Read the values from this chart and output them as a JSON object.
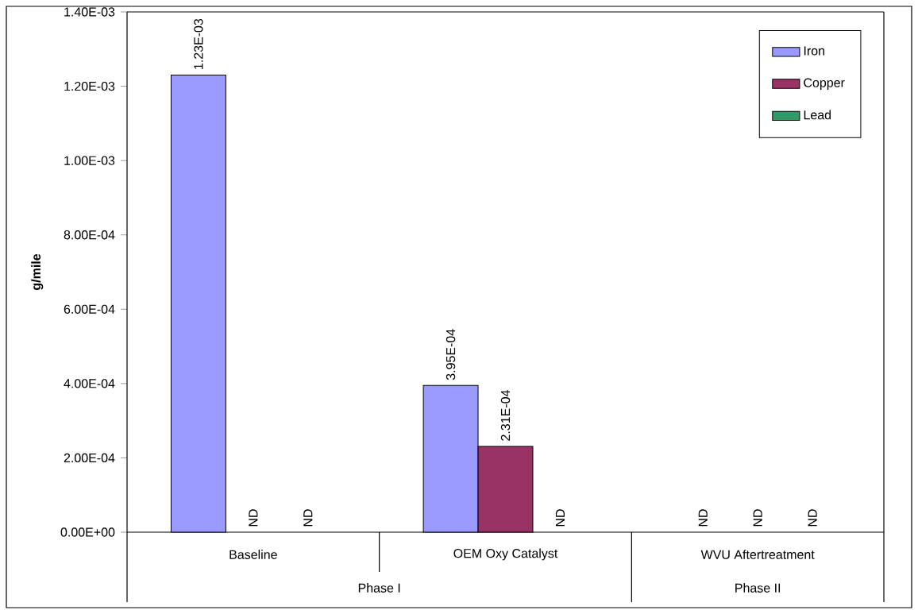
{
  "chart_data": {
    "type": "bar",
    "ylabel": "g/mile",
    "categories": [
      "Baseline",
      "OEM Oxy Catalyst",
      "WVU Aftertreatment"
    ],
    "series": [
      {
        "name": "Iron",
        "color": "#9999ff",
        "values": [
          0.00123,
          0.000395,
          null
        ],
        "value_labels": [
          "1.23E-03",
          "3.95E-04",
          "ND"
        ]
      },
      {
        "name": "Copper",
        "color": "#993366",
        "values": [
          null,
          0.000231,
          null
        ],
        "value_labels": [
          "ND",
          "2.31E-04",
          "ND"
        ]
      },
      {
        "name": "Lead",
        "color": "#339966",
        "values": [
          null,
          null,
          null
        ],
        "value_labels": [
          "ND",
          "ND",
          "ND"
        ]
      }
    ],
    "ylim": [
      0,
      0.0014
    ],
    "yticks": [
      {
        "value": 0,
        "label": "0.00E+00"
      },
      {
        "value": 0.0002,
        "label": "2.00E-04"
      },
      {
        "value": 0.0004,
        "label": "4.00E-04"
      },
      {
        "value": 0.0006,
        "label": "6.00E-04"
      },
      {
        "value": 0.0008,
        "label": "8.00E-04"
      },
      {
        "value": 0.001,
        "label": "1.00E-03"
      },
      {
        "value": 0.0012,
        "label": "1.20E-03"
      },
      {
        "value": 0.0014,
        "label": "1.40E-03"
      }
    ],
    "legend": "top right",
    "annotations": [
      "Phase I",
      "Phase II"
    ]
  }
}
